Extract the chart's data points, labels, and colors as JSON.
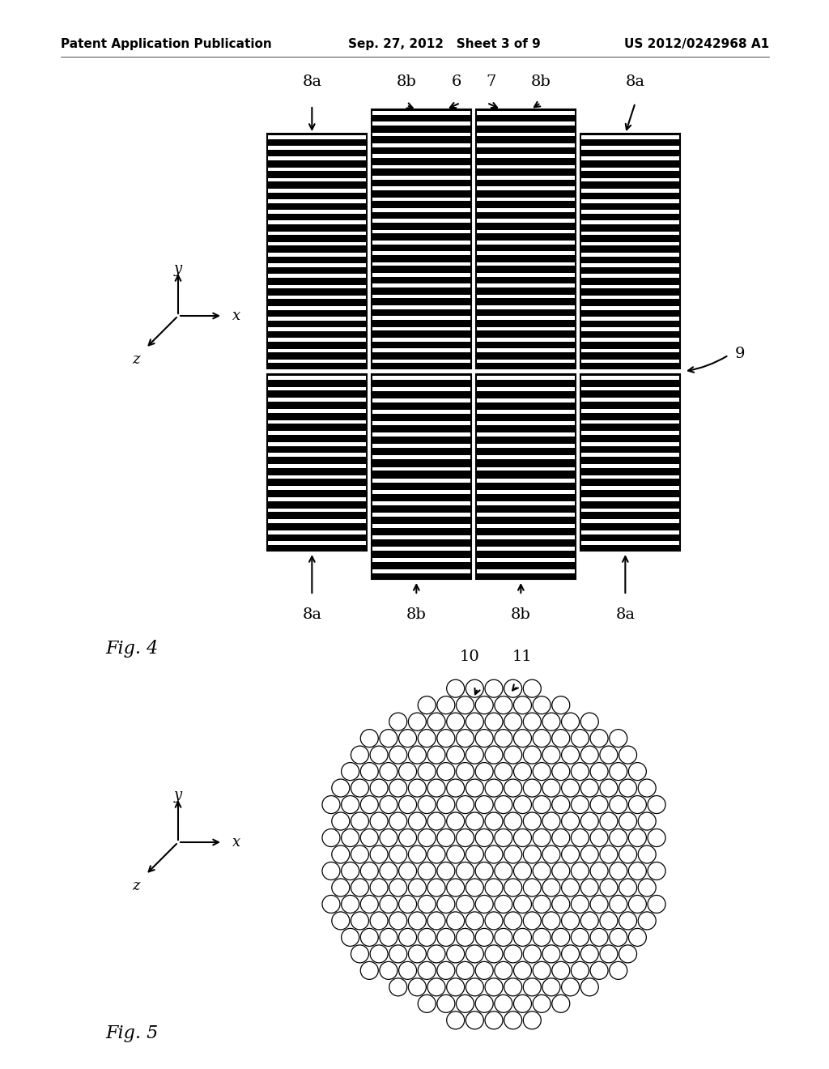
{
  "bg_color": "#ffffff",
  "header_left": "Patent Application Publication",
  "header_mid": "Sep. 27, 2012   Sheet 3 of 9",
  "header_right": "US 2012/0242968 A1",
  "fig4_label": "Fig. 4",
  "fig5_label": "Fig. 5",
  "top_labels": [
    "8a",
    "8b",
    "6",
    "7",
    "8b",
    "8a"
  ],
  "bottom_labels_fig4": [
    "8a",
    "8b",
    "8b",
    "8a"
  ],
  "label_9": "9",
  "label_10": "10",
  "label_11": "11"
}
